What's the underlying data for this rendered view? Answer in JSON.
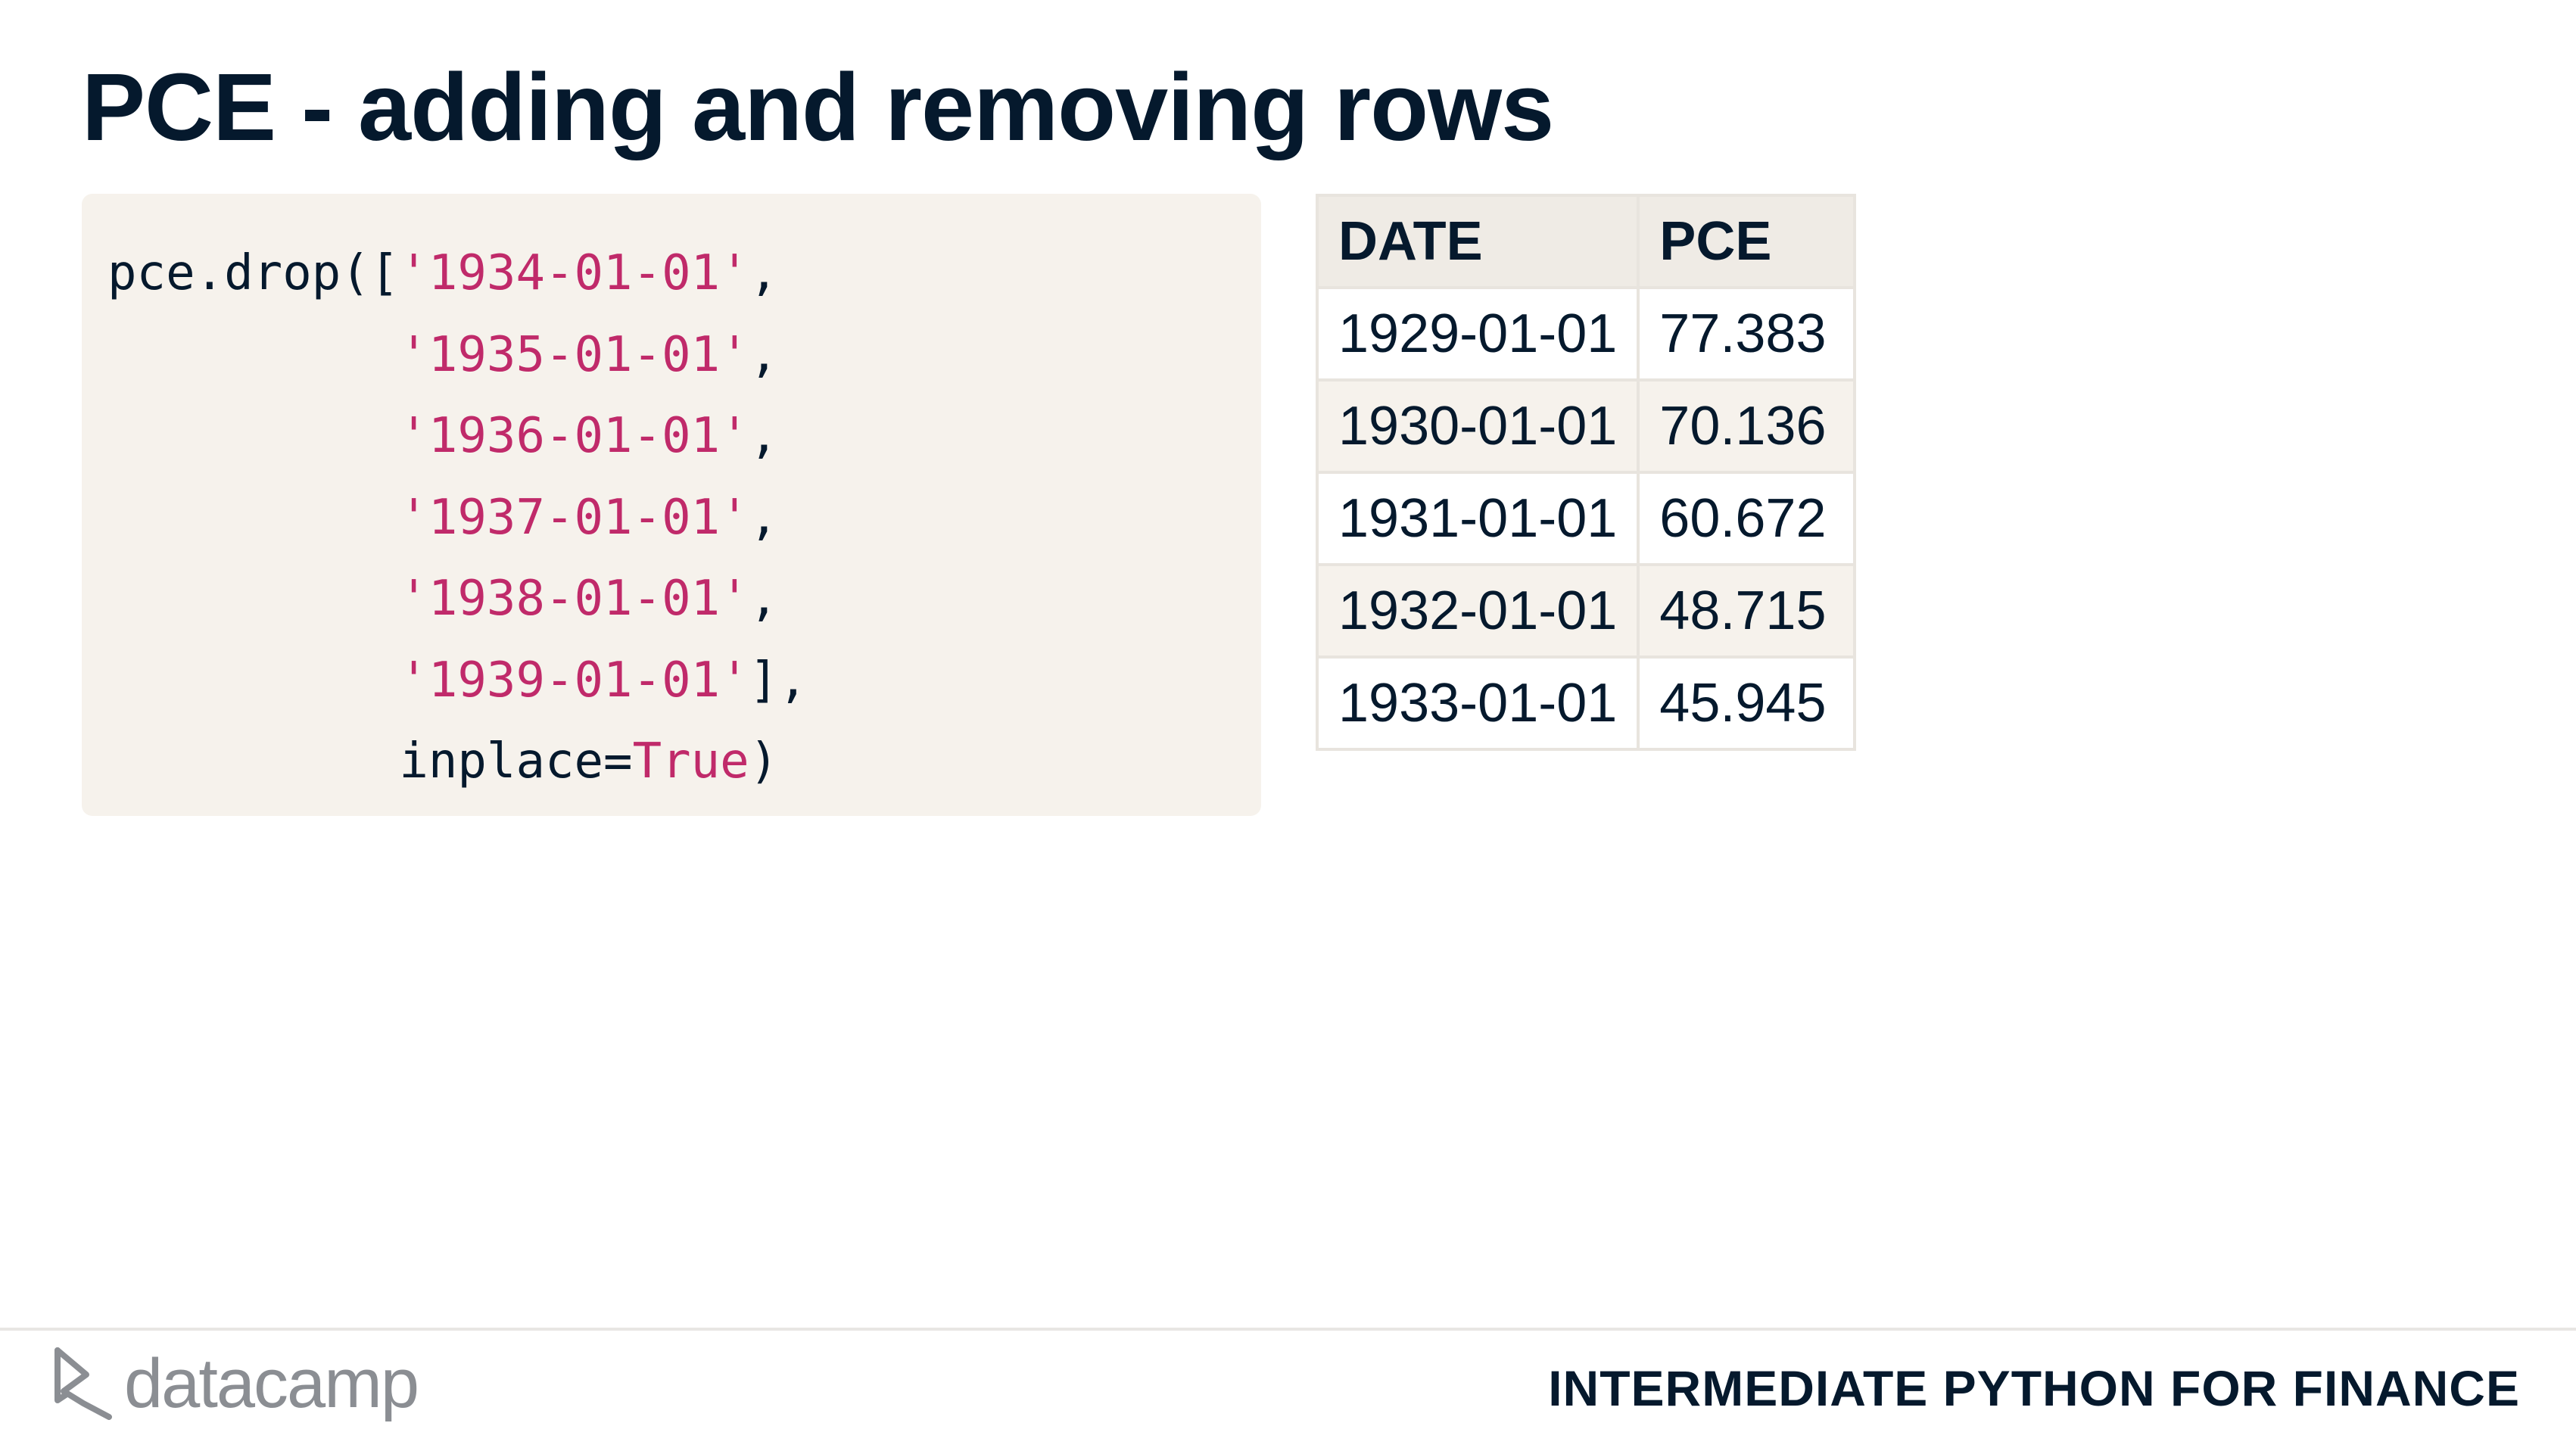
{
  "slide": {
    "title": "PCE - adding and removing rows"
  },
  "code": {
    "lines": [
      [
        {
          "t": "pce.drop([",
          "k": "plain"
        },
        {
          "t": "'1934-01-01'",
          "k": "str"
        },
        {
          "t": ",",
          "k": "plain"
        }
      ],
      [
        {
          "t": "          ",
          "k": "plain"
        },
        {
          "t": "'1935-01-01'",
          "k": "str"
        },
        {
          "t": ",",
          "k": "plain"
        }
      ],
      [
        {
          "t": "          ",
          "k": "plain"
        },
        {
          "t": "'1936-01-01'",
          "k": "str"
        },
        {
          "t": ",",
          "k": "plain"
        }
      ],
      [
        {
          "t": "          ",
          "k": "plain"
        },
        {
          "t": "'1937-01-01'",
          "k": "str"
        },
        {
          "t": ",",
          "k": "plain"
        }
      ],
      [
        {
          "t": "          ",
          "k": "plain"
        },
        {
          "t": "'1938-01-01'",
          "k": "str"
        },
        {
          "t": ",",
          "k": "plain"
        }
      ],
      [
        {
          "t": "          ",
          "k": "plain"
        },
        {
          "t": "'1939-01-01'",
          "k": "str"
        },
        {
          "t": "],",
          "k": "plain"
        }
      ],
      [
        {
          "t": "          inplace=",
          "k": "plain"
        },
        {
          "t": "True",
          "k": "kw"
        },
        {
          "t": ")",
          "k": "plain"
        }
      ]
    ]
  },
  "table": {
    "headers": [
      "DATE",
      "PCE"
    ],
    "rows": [
      [
        "1929-01-01",
        "77.383"
      ],
      [
        "1930-01-01",
        "70.136"
      ],
      [
        "1931-01-01",
        "60.672"
      ],
      [
        "1932-01-01",
        "48.715"
      ],
      [
        "1933-01-01",
        "45.945"
      ]
    ]
  },
  "footer": {
    "brand": "datacamp",
    "logo_icon": "datacamp-logo-icon",
    "course": "INTERMEDIATE PYTHON FOR FINANCE"
  },
  "colors": {
    "text": "#05192d",
    "string": "#c02a6a",
    "code_bg": "#f6f2ec",
    "brand_gray": "#8b8e93"
  }
}
